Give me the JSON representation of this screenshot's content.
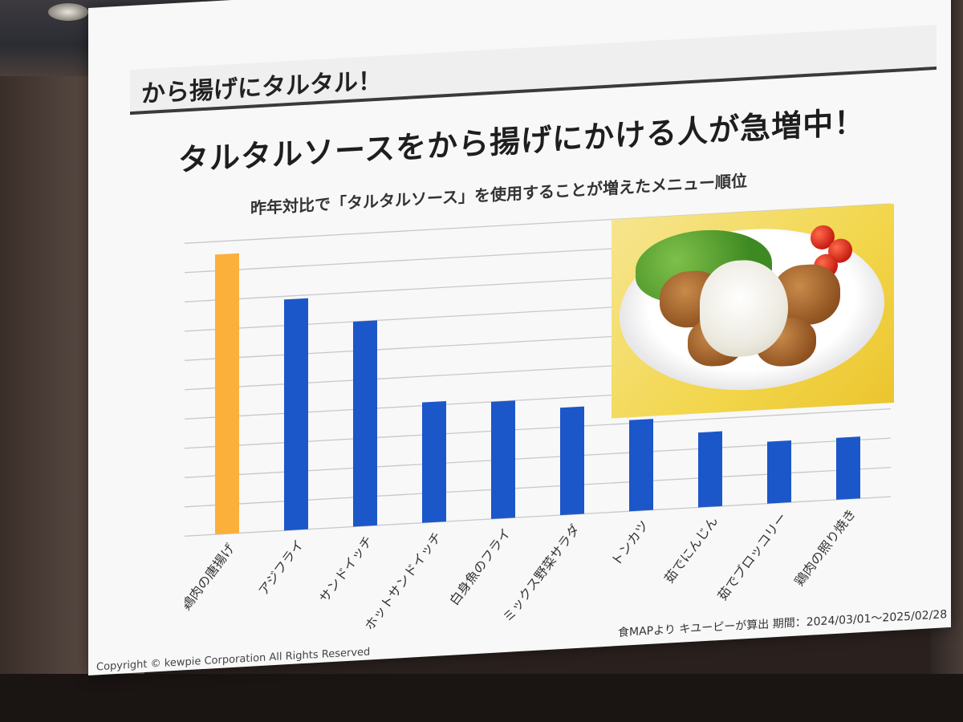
{
  "slide": {
    "title": "から揚げにタルタル！",
    "headline": "タルタルソースをから揚げにかける人が急増中！",
    "subtitle": "昨年対比で「タルタルソース」を使用することが増えたメニュー順位",
    "source": "食MAPより キユーピーが算出 期間：2024/03/01～2025/02/28",
    "copyright": "Copyright © kewpie Corporation All Rights Reserved"
  },
  "colors": {
    "highlight": "#FBB03B",
    "bar": "#1C57C9",
    "grid": "#c8c8c8"
  },
  "photo": {
    "icon": "fried-chicken-tartar-photo"
  },
  "chart_data": {
    "type": "bar",
    "title": "",
    "xlabel": "",
    "ylabel": "",
    "grid": true,
    "ylim": [
      0,
      9
    ],
    "categories": [
      "鶏肉の唐揚げ",
      "アジフライ",
      "サンドイッチ",
      "ホットサンドイッチ",
      "白身魚のフライ",
      "ミックス野菜サラダ",
      "トンカツ",
      "茹でにんじん",
      "茹でブロッコリー",
      "鶏肉の照り焼き"
    ],
    "series": [
      {
        "values": [
          8.6,
          7.1,
          6.3,
          3.7,
          3.6,
          3.3,
          2.8,
          2.3,
          1.9,
          1.9
        ]
      }
    ],
    "highlight_index": 0
  }
}
